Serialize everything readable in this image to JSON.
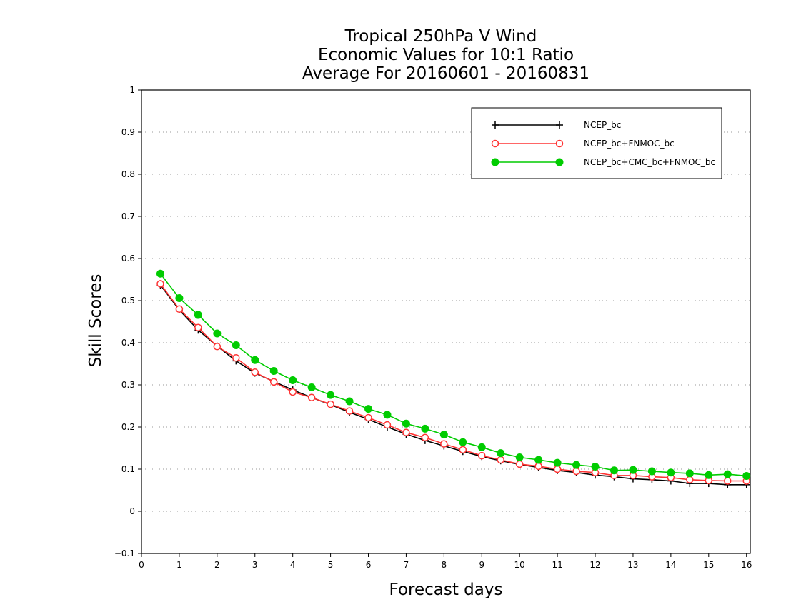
{
  "chart_data": {
    "type": "line",
    "title": [
      "Tropical 250hPa V Wind",
      "Economic Values for 10:1 Ratio",
      "Average For 20160601 - 20160831"
    ],
    "xlabel": "Forecast days",
    "ylabel": "Skill Scores",
    "xlim": [
      0,
      16.1
    ],
    "ylim": [
      -0.1,
      1
    ],
    "x_ticks": [
      0,
      1,
      2,
      3,
      4,
      5,
      6,
      7,
      8,
      9,
      10,
      11,
      12,
      13,
      14,
      15,
      16
    ],
    "y_ticks": [
      -0.1,
      0,
      0.1,
      0.2,
      0.3,
      0.4,
      0.5,
      0.6,
      0.7,
      0.8,
      0.9,
      1
    ],
    "y_tick_labels": [
      "−0.1",
      "0",
      "0.1",
      "0.2",
      "0.3",
      "0.4",
      "0.5",
      "0.6",
      "0.7",
      "0.8",
      "0.9",
      "1"
    ],
    "grid": "horizontal dotted",
    "legend_position": "top-right",
    "x": [
      0.5,
      1,
      1.5,
      2,
      2.5,
      3,
      3.5,
      4,
      4.5,
      5,
      5.5,
      6,
      6.5,
      7,
      7.5,
      8,
      8.5,
      9,
      9.5,
      10,
      10.5,
      11,
      11.5,
      12,
      12.5,
      13,
      13.5,
      14,
      14.5,
      15,
      15.5,
      16
    ],
    "series": [
      {
        "name": "NCEP_bc",
        "color": "#000000",
        "marker": "plus",
        "values": [
          0.537,
          0.478,
          0.43,
          0.392,
          0.357,
          0.328,
          0.308,
          0.288,
          0.27,
          0.253,
          0.235,
          0.218,
          0.2,
          0.183,
          0.168,
          0.155,
          0.142,
          0.13,
          0.12,
          0.111,
          0.104,
          0.097,
          0.092,
          0.086,
          0.082,
          0.077,
          0.075,
          0.072,
          0.066,
          0.066,
          0.063,
          0.063
        ]
      },
      {
        "name": "NCEP_bc+FNMOC_bc",
        "color": "#ff3333",
        "marker": "open-circle",
        "values": [
          0.54,
          0.48,
          0.436,
          0.391,
          0.364,
          0.33,
          0.307,
          0.283,
          0.27,
          0.254,
          0.238,
          0.222,
          0.205,
          0.187,
          0.175,
          0.16,
          0.146,
          0.132,
          0.122,
          0.112,
          0.107,
          0.1,
          0.095,
          0.092,
          0.085,
          0.085,
          0.082,
          0.08,
          0.075,
          0.073,
          0.072,
          0.072
        ]
      },
      {
        "name": "NCEP_bc+CMC_bc+FNMOC_bc",
        "color": "#00cc00",
        "marker": "filled-circle",
        "values": [
          0.564,
          0.506,
          0.466,
          0.422,
          0.394,
          0.359,
          0.333,
          0.311,
          0.294,
          0.276,
          0.261,
          0.243,
          0.229,
          0.208,
          0.196,
          0.182,
          0.164,
          0.152,
          0.138,
          0.128,
          0.122,
          0.115,
          0.11,
          0.106,
          0.097,
          0.098,
          0.095,
          0.092,
          0.09,
          0.086,
          0.088,
          0.084
        ]
      }
    ]
  }
}
